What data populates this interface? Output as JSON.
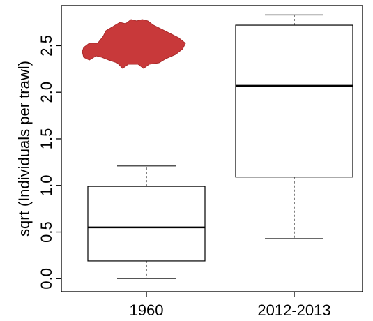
{
  "chart_data": {
    "type": "boxplot",
    "y_label": "sqrt (Individuals per trawl)",
    "categories": [
      "1960",
      "2012-2013"
    ],
    "boxes": [
      {
        "whislo": 0.0,
        "q1": 0.19,
        "med": 0.55,
        "q3": 0.99,
        "whishi": 1.21
      },
      {
        "whislo": 0.43,
        "q1": 1.09,
        "med": 2.07,
        "q3": 2.72,
        "whishi": 2.83
      }
    ],
    "color": "#000000",
    "ylim": [
      -0.14,
      2.93
    ],
    "yticks": [
      {
        "value": 0,
        "label": "0.0"
      },
      0.5,
      {
        "value": 1,
        "label": "1.0"
      },
      1.5,
      {
        "value": 2,
        "label": "2.0"
      },
      2.5
    ]
  }
}
